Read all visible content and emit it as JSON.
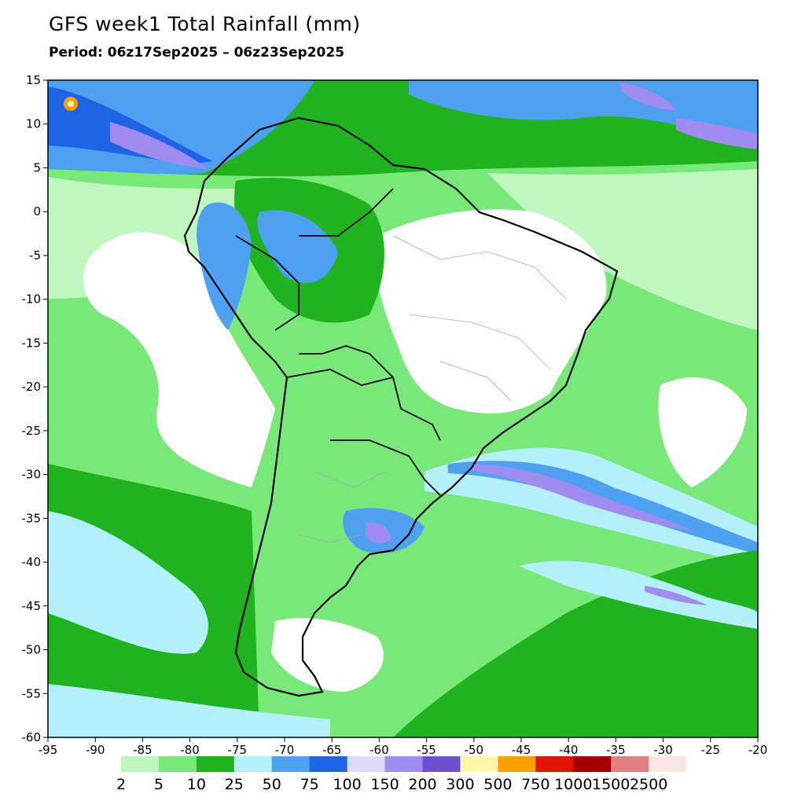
{
  "title": "GFS week1 Total Rainfall (mm)",
  "subtitle": "Period: 06z17Sep2025 – 06z23Sep2025",
  "axes": {
    "lon": {
      "min": -95,
      "max": -20,
      "ticks": [
        -95,
        -90,
        -85,
        -80,
        -75,
        -70,
        -65,
        -60,
        -55,
        -50,
        -45,
        -40,
        -35,
        -30,
        -25,
        -20
      ]
    },
    "lat": {
      "min": -60,
      "max": 15,
      "ticks": [
        15,
        10,
        5,
        0,
        -5,
        -10,
        -15,
        -20,
        -25,
        -30,
        -35,
        -40,
        -45,
        -50,
        -55,
        -60
      ]
    }
  },
  "legend": {
    "levels": [
      "2",
      "5",
      "10",
      "25",
      "50",
      "75",
      "100",
      "150",
      "200",
      "300",
      "500",
      "750",
      "1000",
      "1500",
      "2500"
    ],
    "colors": [
      "#bff7bf",
      "#78e878",
      "#1fb41f",
      "#b4f0fa",
      "#4ea0f0",
      "#1e64e6",
      "#dcdcfa",
      "#a08cf0",
      "#6e50d2",
      "#fff8aa",
      "#ffa000",
      "#e11400",
      "#a50000",
      "#e08080",
      "#fbe6e6",
      "#ffffff"
    ]
  },
  "map": {
    "background_color": "#ffffff",
    "land_outline_color": "#000000",
    "border_color": "#a9a9a9"
  }
}
